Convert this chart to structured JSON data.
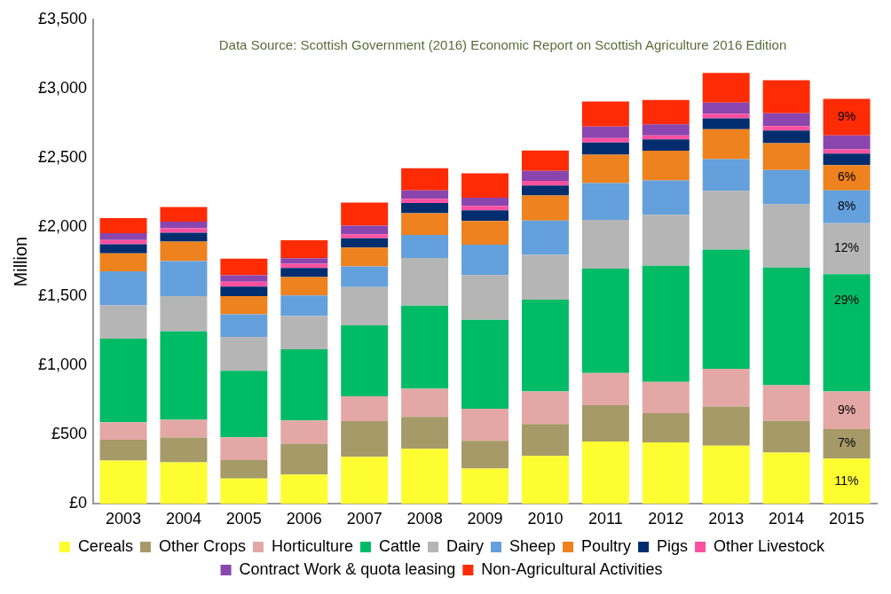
{
  "chart_data": {
    "type": "bar",
    "stacked": true,
    "ylabel": "Million",
    "annotations": [
      "Data Source: Scottish Government (2016) Economic Report on Scottish Agriculture 2016 Edition",
      {
        "text": "11%",
        "x": "2015",
        "y": 327
      },
      {
        "text": "7%",
        "x": "2015",
        "y": 541
      },
      {
        "text": "9%",
        "x": "2015",
        "y": 813
      },
      {
        "text": "29%",
        "x": "2015",
        "y": 1659
      },
      {
        "text": "12%",
        "x": "2015",
        "y": 2027
      },
      {
        "text": "8%",
        "x": "2015",
        "y": 2265
      },
      {
        "text": "6%",
        "x": "2015",
        "y": 2447
      },
      {
        "text": "9%",
        "x": "2015",
        "y": 2926
      }
    ],
    "categories": [
      "2003",
      "2004",
      "2005",
      "2006",
      "2007",
      "2008",
      "2009",
      "2010",
      "2011",
      "2012",
      "2013",
      "2014",
      "2015"
    ],
    "ylim": [
      0,
      3500
    ],
    "yticks": [
      {
        "value": 0,
        "label": "£0"
      },
      {
        "value": 500,
        "label": "£500"
      },
      {
        "value": 1000,
        "label": "£1,000"
      },
      {
        "value": 1500,
        "label": "£1,500"
      },
      {
        "value": 2000,
        "label": "£2,000"
      },
      {
        "value": 2500,
        "label": "£2,500"
      },
      {
        "value": 3000,
        "label": "£3,000"
      },
      {
        "value": 3500,
        "label": "£3,500"
      }
    ],
    "grid": false,
    "legend": "bottom",
    "series": [
      {
        "name": "Cereals",
        "color": "#fdfd32",
        "values": [
          313,
          301,
          183,
          212,
          340,
          398,
          255,
          347,
          450,
          445,
          421,
          370,
          327
        ]
      },
      {
        "name": "Other Crops",
        "color": "#a59a68",
        "values": [
          150,
          179,
          133,
          222,
          258,
          231,
          200,
          231,
          264,
          211,
          283,
          229,
          214
        ]
      },
      {
        "name": "Horticulture",
        "color": "#e3a8a5",
        "values": [
          127,
          127,
          166,
          169,
          180,
          202,
          232,
          234,
          231,
          226,
          272,
          259,
          272
        ]
      },
      {
        "name": "Cattle",
        "color": "#00bb66",
        "values": [
          603,
          639,
          480,
          513,
          511,
          601,
          643,
          663,
          755,
          839,
          861,
          849,
          846
        ]
      },
      {
        "name": "Dairy",
        "color": "#b5b5b5",
        "values": [
          241,
          255,
          245,
          241,
          278,
          344,
          323,
          323,
          351,
          368,
          425,
          457,
          368
        ]
      },
      {
        "name": "Sheep",
        "color": "#64a0dc",
        "values": [
          246,
          253,
          162,
          149,
          149,
          166,
          220,
          248,
          266,
          248,
          229,
          247,
          238
        ]
      },
      {
        "name": "Poultry",
        "color": "#ee821e",
        "values": [
          130,
          140,
          132,
          133,
          135,
          157,
          171,
          181,
          205,
          214,
          216,
          195,
          182
        ]
      },
      {
        "name": "Pigs",
        "color": "#002d6e",
        "values": [
          65,
          65,
          68,
          65,
          67,
          75,
          77,
          72,
          89,
          81,
          77,
          91,
          84
        ]
      },
      {
        "name": "Other Livestock",
        "color": "#fc50a0",
        "values": [
          31,
          32,
          36,
          31,
          29,
          29,
          31,
          34,
          31,
          29,
          34,
          32,
          29
        ]
      },
      {
        "name": "Contract Work & quota leasing",
        "color": "#8a46ae",
        "values": [
          49,
          48,
          46,
          39,
          63,
          62,
          60,
          72,
          84,
          80,
          81,
          93,
          101
        ]
      },
      {
        "name": "Non-Agricultural Activities",
        "color": "#ff2b05",
        "values": [
          110,
          106,
          120,
          130,
          166,
          159,
          176,
          147,
          180,
          177,
          214,
          238,
          265
        ]
      }
    ]
  }
}
